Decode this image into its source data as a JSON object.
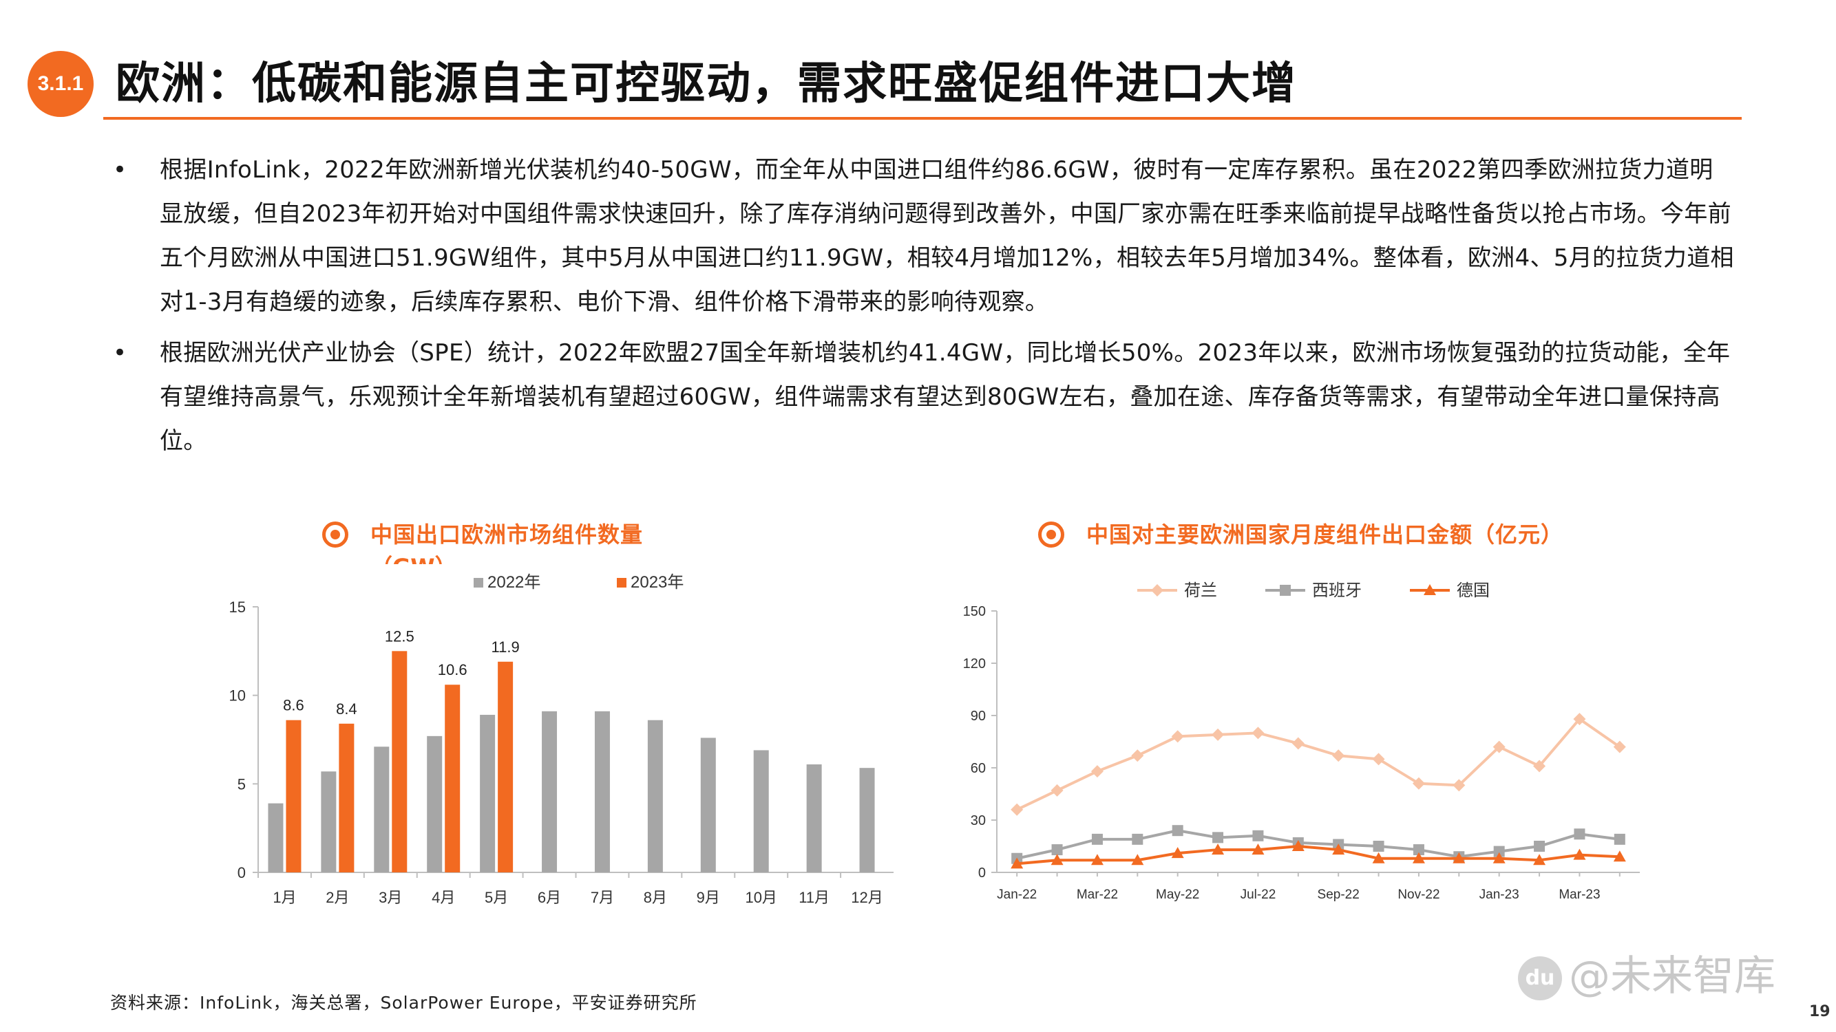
{
  "header": {
    "section_number": "3.1.1",
    "title": "欧洲：低碳和能源自主可控驱动，需求旺盛促组件进口大增"
  },
  "bullets": [
    "根据InfoLink，2022年欧洲新增光伏装机约40-50GW，而全年从中国进口组件约86.6GW，彼时有一定库存累积。虽在2022第四季欧洲拉货力道明显放缓，但自2023年初开始对中国组件需求快速回升，除了库存消纳问题得到改善外，中国厂家亦需在旺季来临前提早战略性备货以抢占市场。今年前五个月欧洲从中国进口51.9GW组件，其中5月从中国进口约11.9GW，相较4月增加12%，相较去年5月增加34%。整体看，欧洲4、5月的拉货力道相对1-3月有趋缓的迹象，后续库存累积、电价下滑、组件价格下滑带来的影响待观察。",
    "根据欧洲光伏产业协会（SPE）统计，2022年欧盟27国全年新增装机约41.4GW，同比增长50%。2023年以来，欧洲市场恢复强劲的拉货动能，全年有望维持高景气，乐观预计全年新增装机有望超过60GW，组件端需求有望达到80GW左右，叠加在途、库存备货等需求，有望带动全年进口量保持高位。"
  ],
  "chart_data": [
    {
      "type": "bar",
      "title": "中国出口欧洲市场组件数量",
      "title_overflow": "（GW）",
      "categories": [
        "1月",
        "2月",
        "3月",
        "4月",
        "5月",
        "6月",
        "7月",
        "8月",
        "9月",
        "10月",
        "11月",
        "12月"
      ],
      "series": [
        {
          "name": "2022年",
          "color": "#a6a6a6",
          "values": [
            3.9,
            5.7,
            7.1,
            7.7,
            8.9,
            9.1,
            9.1,
            8.6,
            7.6,
            6.9,
            6.1,
            5.9
          ]
        },
        {
          "name": "2023年",
          "color": "#f26a21",
          "values": [
            8.6,
            8.4,
            12.5,
            10.6,
            11.9,
            null,
            null,
            null,
            null,
            null,
            null,
            null
          ],
          "data_labels": [
            "8.6",
            "8.4",
            "12.5",
            "10.6",
            "11.9"
          ]
        }
      ],
      "ylim": [
        0,
        15
      ],
      "yticks": [
        "0",
        "5",
        "10",
        "15"
      ],
      "legend_position": "top",
      "grid": false
    },
    {
      "type": "line",
      "title": "中国对主要欧洲国家月度组件出口金额（亿元）",
      "x": [
        "Jan-22",
        "Feb-22",
        "Mar-22",
        "Apr-22",
        "May-22",
        "Jun-22",
        "Jul-22",
        "Aug-22",
        "Sep-22",
        "Oct-22",
        "Nov-22",
        "Dec-22",
        "Jan-23",
        "Feb-23",
        "Mar-23",
        "Apr-23"
      ],
      "xtick_labels": [
        "Jan-22",
        "Mar-22",
        "May-22",
        "Jul-22",
        "Sep-22",
        "Nov-22",
        "Jan-23",
        "Mar-23"
      ],
      "series": [
        {
          "name": "荷兰",
          "color": "#f8c4a6",
          "marker": "diamond",
          "values": [
            36,
            47,
            58,
            67,
            78,
            79,
            80,
            74,
            67,
            65,
            51,
            50,
            72,
            61,
            88,
            72
          ]
        },
        {
          "name": "西班牙",
          "color": "#a6a6a6",
          "marker": "square",
          "values": [
            8,
            13,
            19,
            19,
            24,
            20,
            21,
            17,
            16,
            15,
            13,
            9,
            12,
            15,
            22,
            19
          ]
        },
        {
          "name": "德国",
          "color": "#f26a21",
          "marker": "triangle",
          "values": [
            5,
            7,
            7,
            7,
            11,
            13,
            13,
            15,
            13,
            8,
            8,
            8,
            8,
            7,
            10,
            9
          ]
        }
      ],
      "ylim": [
        0,
        150
      ],
      "yticks": [
        "0",
        "30",
        "60",
        "90",
        "120",
        "150"
      ],
      "legend_position": "top",
      "grid": false
    }
  ],
  "footer": {
    "source": "资料来源：InfoLink，海关总署，SolarPower Europe，平安证券研究所",
    "watermark_logo": "du",
    "watermark_text": "@未来智库",
    "page_number": "19"
  }
}
